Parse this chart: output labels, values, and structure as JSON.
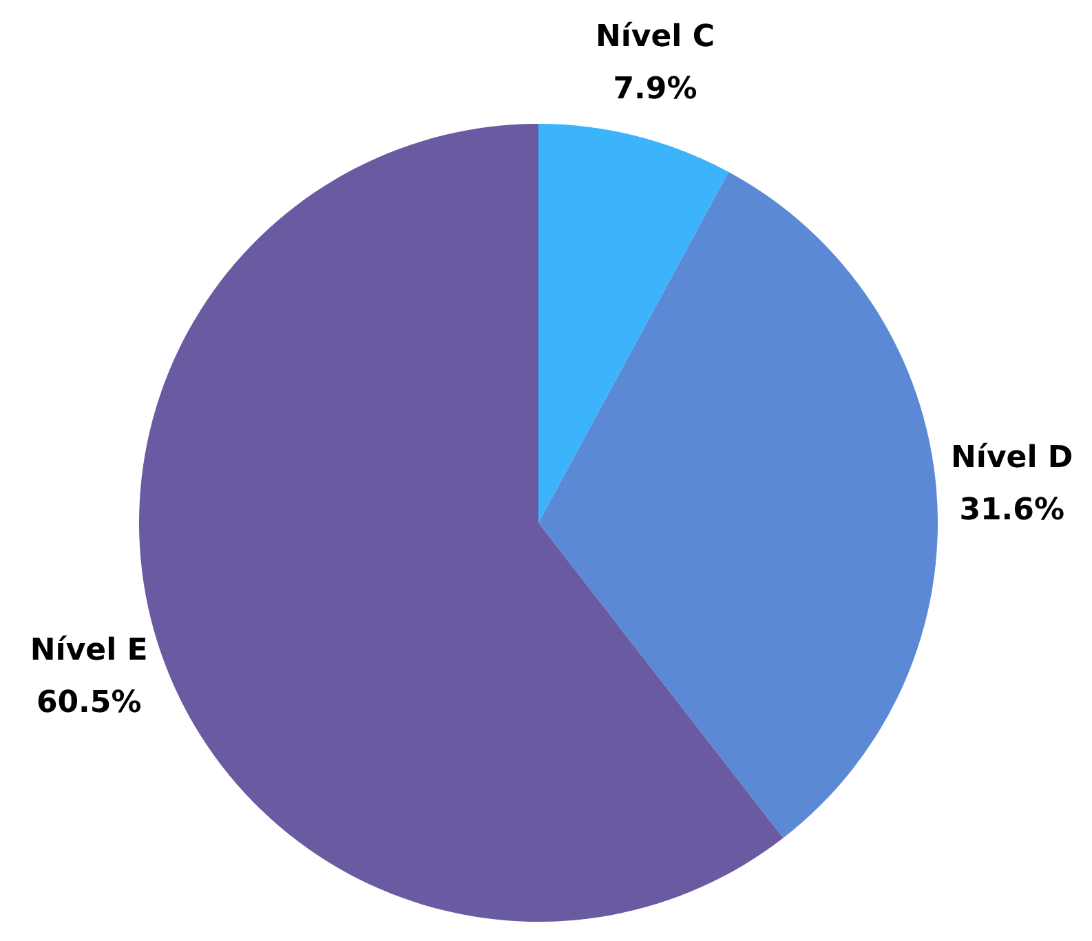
{
  "chart_data": {
    "type": "pie",
    "categories": [
      "Nível C",
      "Nível D",
      "Nível E"
    ],
    "values": [
      7.9,
      31.6,
      60.5
    ],
    "colors": [
      "#3bb4fc",
      "#5c89d6",
      "#6a5aa2"
    ],
    "value_labels": [
      "7.9%",
      "31.6%",
      "60.5%"
    ],
    "legend": false
  }
}
